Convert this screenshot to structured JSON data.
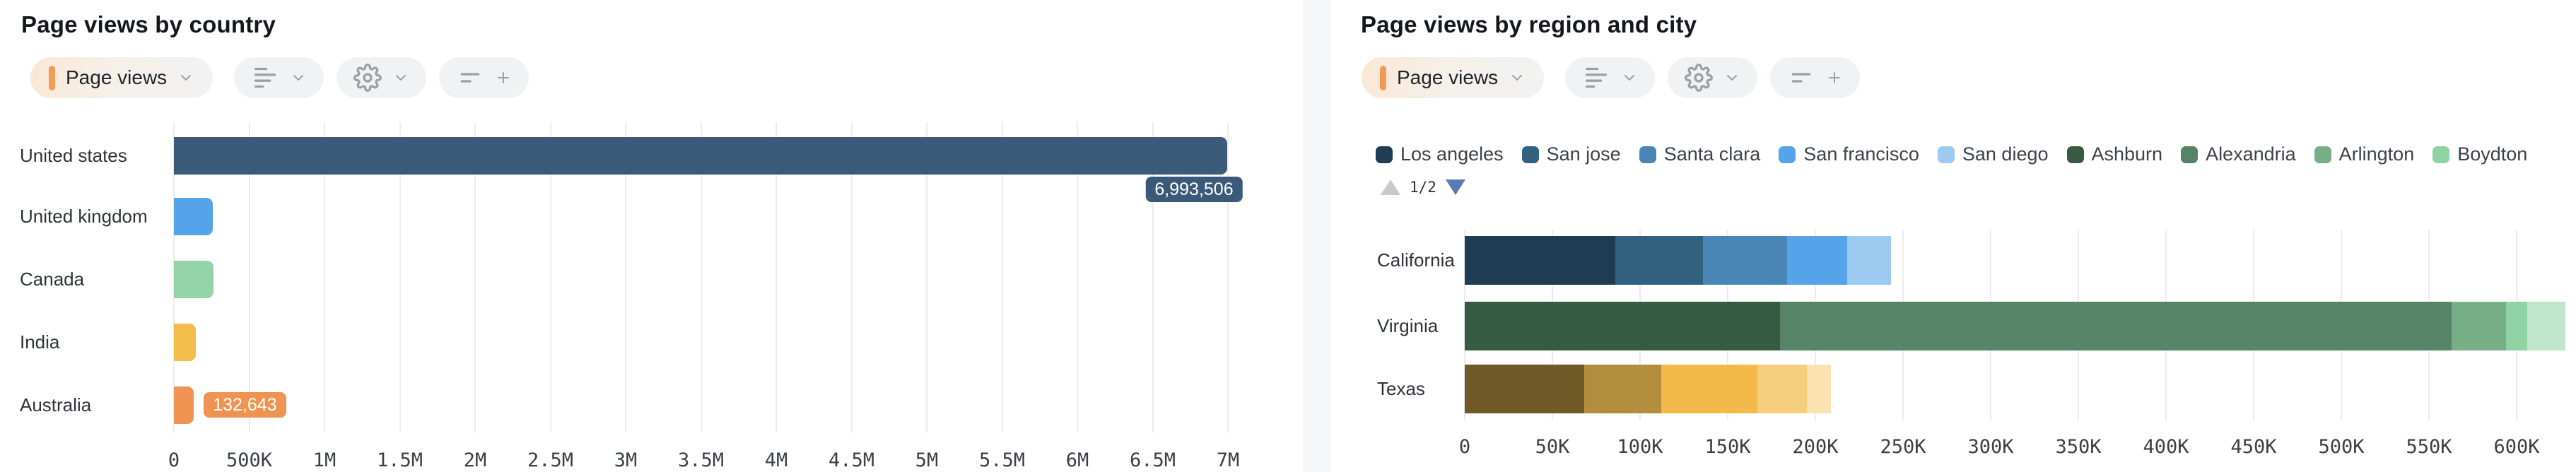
{
  "toolbar": {
    "metric_label": "Page views",
    "accent_color": "#f29a56",
    "icons": {
      "metric_marker": "orange-bar",
      "dropdown": "chevron-down",
      "style_button": "list-lines",
      "settings_button": "gear",
      "filter_button": "filter-lines",
      "add_button": "plus"
    }
  },
  "legend": {
    "items": [
      {
        "label": "Los angeles",
        "color": "#1f3c52"
      },
      {
        "label": "San jose",
        "color": "#32617f"
      },
      {
        "label": "Santa clara",
        "color": "#4a86b5"
      },
      {
        "label": "San francisco",
        "color": "#55a3e8"
      },
      {
        "label": "San diego",
        "color": "#9ccaf0"
      },
      {
        "label": "Ashburn",
        "color": "#365b42"
      },
      {
        "label": "Alexandria",
        "color": "#578367"
      },
      {
        "label": "Arlington",
        "color": "#76ae85"
      },
      {
        "label": "Boydton",
        "color": "#8fd2a4"
      }
    ],
    "pager": {
      "text": "1/2",
      "up_color": "#c7c9cb",
      "down_color": "#5a7ab6"
    }
  },
  "chart_data": [
    {
      "type": "bar",
      "orientation": "horizontal",
      "title": "Page views by country",
      "categories": [
        "United states",
        "United kingdom",
        "Canada",
        "India",
        "Australia"
      ],
      "values": [
        6993506,
        257000,
        262000,
        147000,
        132643
      ],
      "colors": [
        "#3b5a7a",
        "#55a3e8",
        "#93d3a7",
        "#f2bd4a",
        "#ee9351"
      ],
      "data_labels": [
        {
          "index": 0,
          "text": "6,993,506",
          "position": "below-end"
        },
        {
          "index": 4,
          "text": "132,643",
          "position": "right"
        }
      ],
      "x_ticks": [
        "0",
        "500K",
        "1M",
        "1.5M",
        "2M",
        "2.5M",
        "3M",
        "3.5M",
        "4M",
        "4.5M",
        "5M",
        "5.5M",
        "6M",
        "6.5M",
        "7M"
      ],
      "xlim": [
        0,
        7000000
      ],
      "grid": "vertical"
    },
    {
      "type": "stacked-bar",
      "orientation": "horizontal",
      "title": "Page views by region and city",
      "categories": [
        "California",
        "Virginia",
        "Texas"
      ],
      "rows": [
        {
          "region": "California",
          "segments": [
            {
              "city": "Los angeles",
              "value": 86000,
              "color": "#1f3c52"
            },
            {
              "city": "San jose",
              "value": 50000,
              "color": "#32617f"
            },
            {
              "city": "Santa clara",
              "value": 48000,
              "color": "#4a86b5"
            },
            {
              "city": "San francisco",
              "value": 34000,
              "color": "#55a3e8"
            },
            {
              "city": "San diego",
              "value": 25000,
              "color": "#9ccaf0"
            }
          ]
        },
        {
          "region": "Virginia",
          "segments": [
            {
              "city": "Ashburn",
              "value": 180000,
              "color": "#365b42"
            },
            {
              "city": "Alexandria",
              "value": 383000,
              "color": "#578367"
            },
            {
              "city": "Arlington",
              "value": 31000,
              "color": "#76ae85"
            },
            {
              "city": "Boydton",
              "value": 12000,
              "color": "#8fd2a4"
            },
            {
              "city": "",
              "value": 22000,
              "color": "#bfe6cb"
            }
          ]
        },
        {
          "region": "Texas",
          "segments": [
            {
              "city": "",
              "value": 68000,
              "color": "#6f5927"
            },
            {
              "city": "",
              "value": 44000,
              "color": "#b28d3e"
            },
            {
              "city": "",
              "value": 55000,
              "color": "#f3b94b"
            },
            {
              "city": "",
              "value": 28000,
              "color": "#f6cf7e"
            },
            {
              "city": "",
              "value": 14000,
              "color": "#fae3b0"
            }
          ]
        }
      ],
      "x_ticks": [
        "0",
        "50K",
        "100K",
        "150K",
        "200K",
        "250K",
        "300K",
        "350K",
        "400K",
        "450K",
        "500K",
        "550K",
        "600K"
      ],
      "xlim": [
        0,
        600000
      ],
      "grid": "vertical",
      "legend_position": "top",
      "legend_pages": "1/2"
    }
  ]
}
